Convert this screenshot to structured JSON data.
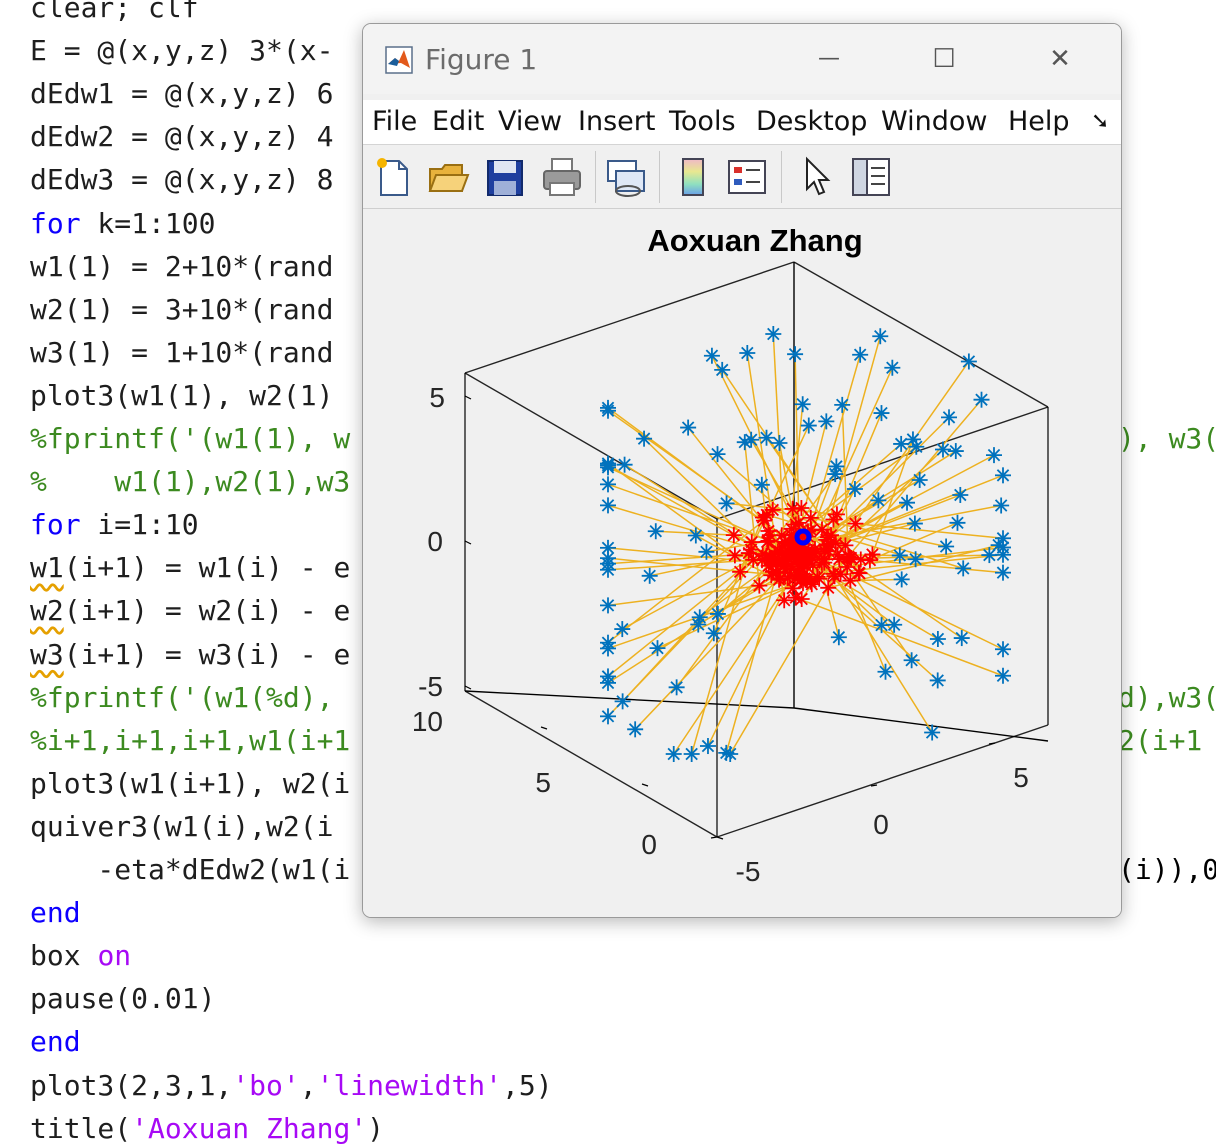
{
  "editor": {
    "lines": [
      [
        {
          "t": "clear; clf",
          "c": ""
        }
      ],
      [
        {
          "t": "E = @(x,y,z) 3*(x-",
          "c": ""
        }
      ],
      [
        {
          "t": "dEdw1 = @(x,y,z) 6",
          "c": ""
        }
      ],
      [
        {
          "t": "dEdw2 = @(x,y,z) 4",
          "c": ""
        }
      ],
      [
        {
          "t": "dEdw3 = @(x,y,z) 8",
          "c": ""
        }
      ],
      [
        {
          "t": "for",
          "c": "kw"
        },
        {
          "t": " k=1:100",
          "c": ""
        }
      ],
      [
        {
          "t": "w1(1) = 2+10*(rand",
          "c": ""
        }
      ],
      [
        {
          "t": "w2(1) = 3+10*(rand",
          "c": ""
        }
      ],
      [
        {
          "t": "w3(1) = 1+10*(rand",
          "c": ""
        }
      ],
      [
        {
          "t": "plot3(w1(1), w2(1)",
          "c": ""
        }
      ],
      [
        {
          "t": "%fprintf('(w1(1), w",
          "c": "cm"
        }
      ],
      [
        {
          "t": "%    w1(1),w2(1),w3",
          "c": "cm"
        }
      ],
      [
        {
          "t": "for",
          "c": "kw"
        },
        {
          "t": " i=1:10",
          "c": ""
        }
      ],
      [
        {
          "t": "w1",
          "c": "sq"
        },
        {
          "t": "(i+1) = w1(i) - e",
          "c": ""
        }
      ],
      [
        {
          "t": "w2",
          "c": "sq"
        },
        {
          "t": "(i+1) = w2(i) - e",
          "c": ""
        }
      ],
      [
        {
          "t": "w3",
          "c": "sq"
        },
        {
          "t": "(i+1) = w3(i) - e",
          "c": ""
        }
      ],
      [
        {
          "t": "%fprintf('(w1(%d),",
          "c": "cm"
        }
      ],
      [
        {
          "t": "%i+1,i+1,i+1,w1(i+1",
          "c": "cm"
        }
      ],
      [
        {
          "t": "plot3(w1(i+1), w2(i",
          "c": ""
        }
      ],
      [
        {
          "t": "quiver3(w1(i),w2(i",
          "c": ""
        }
      ],
      [
        {
          "t": "    -eta*dEdw2(w1(i",
          "c": ""
        }
      ],
      [
        {
          "t": "end",
          "c": "kw"
        }
      ],
      [
        {
          "t": "box ",
          "c": ""
        },
        {
          "t": "on",
          "c": "kw2"
        }
      ],
      [
        {
          "t": "pause(0.01)",
          "c": ""
        }
      ],
      [
        {
          "t": "end",
          "c": "kw"
        }
      ],
      [
        {
          "t": "plot3(2,3,1,",
          "c": ""
        },
        {
          "t": "'bo'",
          "c": "str"
        },
        {
          "t": ",",
          "c": ""
        },
        {
          "t": "'linewidth'",
          "c": "str"
        },
        {
          "t": ",5)",
          "c": ""
        }
      ],
      [
        {
          "t": "title(",
          "c": ""
        },
        {
          "t": "'Aoxuan Zhang'",
          "c": "str"
        },
        {
          "t": ")",
          "c": ""
        }
      ]
    ],
    "right_fragments": [
      {
        "line": 10,
        "text": "), w3(",
        "c": "cm"
      },
      {
        "line": 16,
        "text": "d),w3(",
        "c": "cm"
      },
      {
        "line": 17,
        "text": "2(i+1",
        "c": "cm"
      },
      {
        "line": 20,
        "text": "(i)),0",
        "c": ""
      }
    ]
  },
  "figure": {
    "title": "Figure 1",
    "controls": {
      "minimize": "—",
      "maximize": "☐",
      "close": "✕"
    },
    "menu": [
      "File",
      "Edit",
      "View",
      "Insert",
      "Tools",
      "Desktop",
      "Window",
      "Help"
    ],
    "menu_overflow": "➘",
    "toolbar": [
      "new-figure-icon",
      "open-file-icon",
      "save-icon",
      "print-icon",
      "link-plot-icon",
      "colorbar-icon",
      "legend-icon",
      "pointer-icon",
      "property-inspector-icon"
    ],
    "colors": {
      "start_marker": "#0072bd",
      "end_marker": "#ff0000",
      "path": "#edb120",
      "optimum": "#0000ff",
      "axis_line": "#000000",
      "plot_bg": "#ffffff"
    }
  },
  "chart_data": {
    "type": "scatter",
    "title": "Aoxuan Zhang",
    "xlabel": "",
    "ylabel": "",
    "zlabel": "",
    "z_ticks": [
      "5",
      "0",
      "-5"
    ],
    "y_ticks": [
      "10",
      "5",
      "0"
    ],
    "x_ticks": [
      "5",
      "0",
      "-5"
    ],
    "box": true,
    "optimum": {
      "x": 2,
      "y": 3,
      "z": 1,
      "marker": "o"
    },
    "series": [
      {
        "name": "start points",
        "marker": "*"
      },
      {
        "name": "descent paths",
        "marker": "line"
      },
      {
        "name": "end points",
        "marker": "*"
      }
    ]
  }
}
